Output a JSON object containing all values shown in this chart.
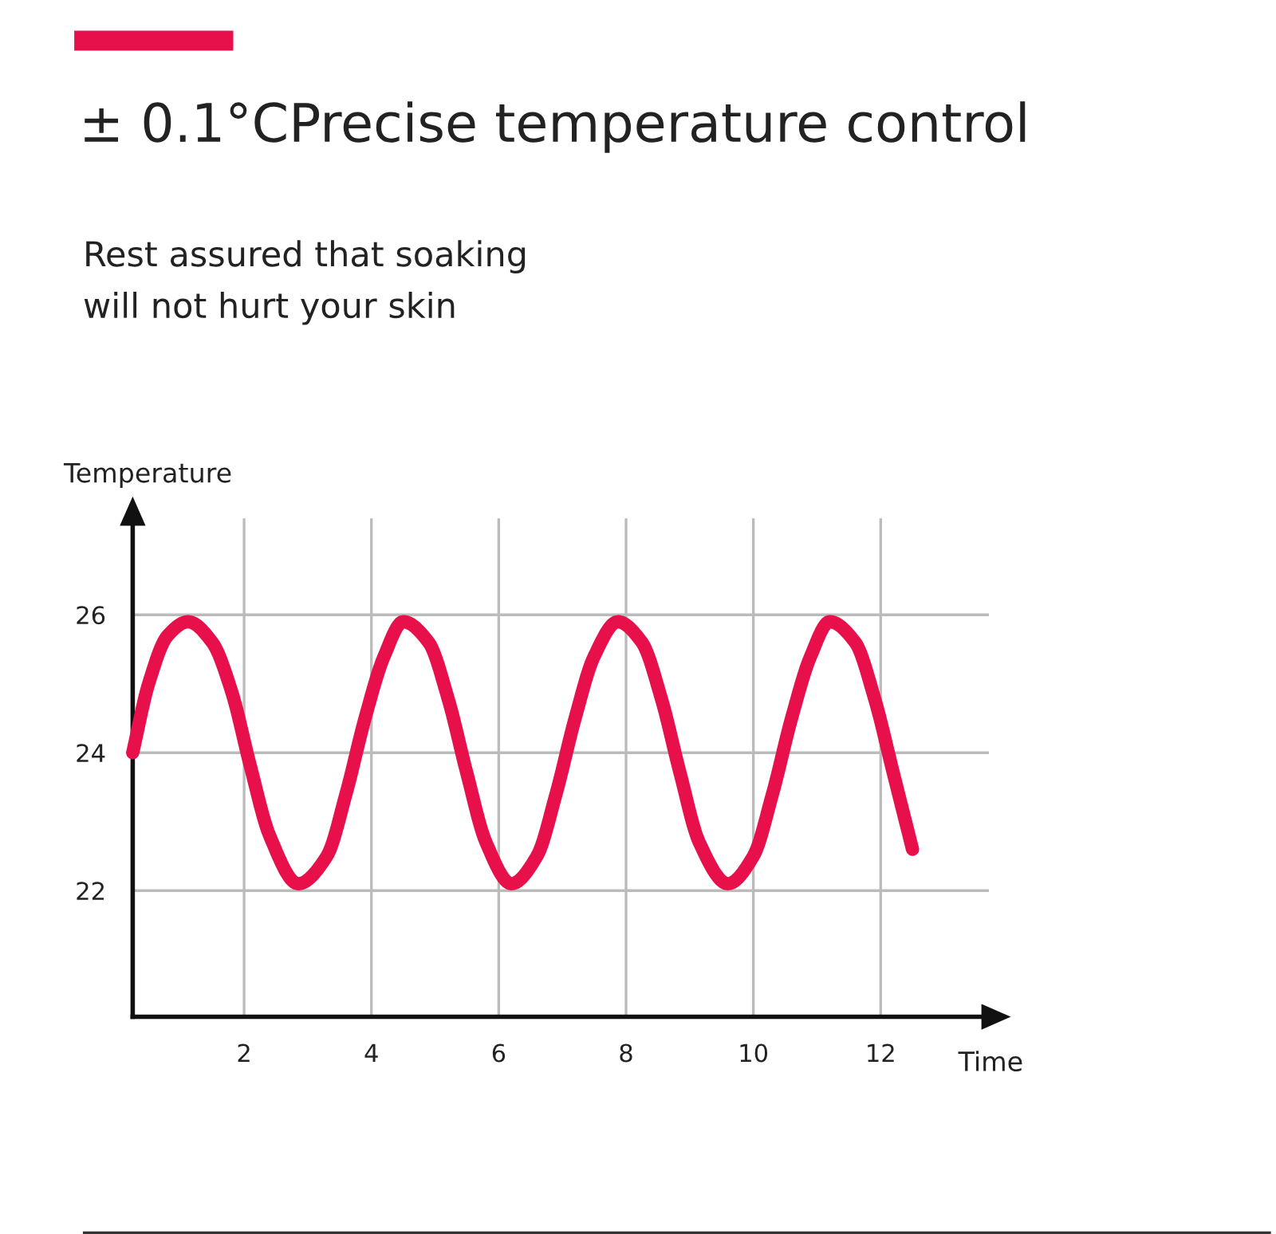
{
  "chart_data": {
    "type": "line",
    "title": "± 0.1°CPrecise temperature control",
    "subtitle": "Rest assured that soaking\nwill not hurt your skin",
    "xlabel": "Time",
    "ylabel": "Temperature",
    "x": [
      0.25,
      0.5,
      0.8,
      1.12,
      1.5,
      1.8,
      2.1,
      2.4,
      2.85,
      3.3,
      3.6,
      3.9,
      4.2,
      4.5,
      4.9,
      5.2,
      5.5,
      5.8,
      6.2,
      6.6,
      6.9,
      7.2,
      7.5,
      7.87,
      8.25,
      8.55,
      8.85,
      9.15,
      9.6,
      10.0,
      10.3,
      10.6,
      10.9,
      11.2,
      11.6,
      11.9,
      12.2,
      12.5
    ],
    "series": [
      {
        "color": "#e8104a",
        "values": [
          24.0,
          25.0,
          25.7,
          25.9,
          25.6,
          24.9,
          23.8,
          22.8,
          22.1,
          22.5,
          23.4,
          24.5,
          25.4,
          25.9,
          25.6,
          24.8,
          23.7,
          22.7,
          22.1,
          22.5,
          23.4,
          24.5,
          25.4,
          25.9,
          25.6,
          24.8,
          23.7,
          22.7,
          22.1,
          22.5,
          23.4,
          24.5,
          25.4,
          25.9,
          25.6,
          24.8,
          23.7,
          22.6
        ]
      }
    ],
    "xlim": [
      0.25,
      13.7
    ],
    "ylim": [
      20.17,
      27.4
    ],
    "xticks": [
      2,
      4,
      6,
      8,
      10,
      12
    ],
    "yticks": [
      22,
      24,
      26
    ],
    "grid": true,
    "legend": false,
    "marker": "none",
    "line_style": "solid"
  }
}
